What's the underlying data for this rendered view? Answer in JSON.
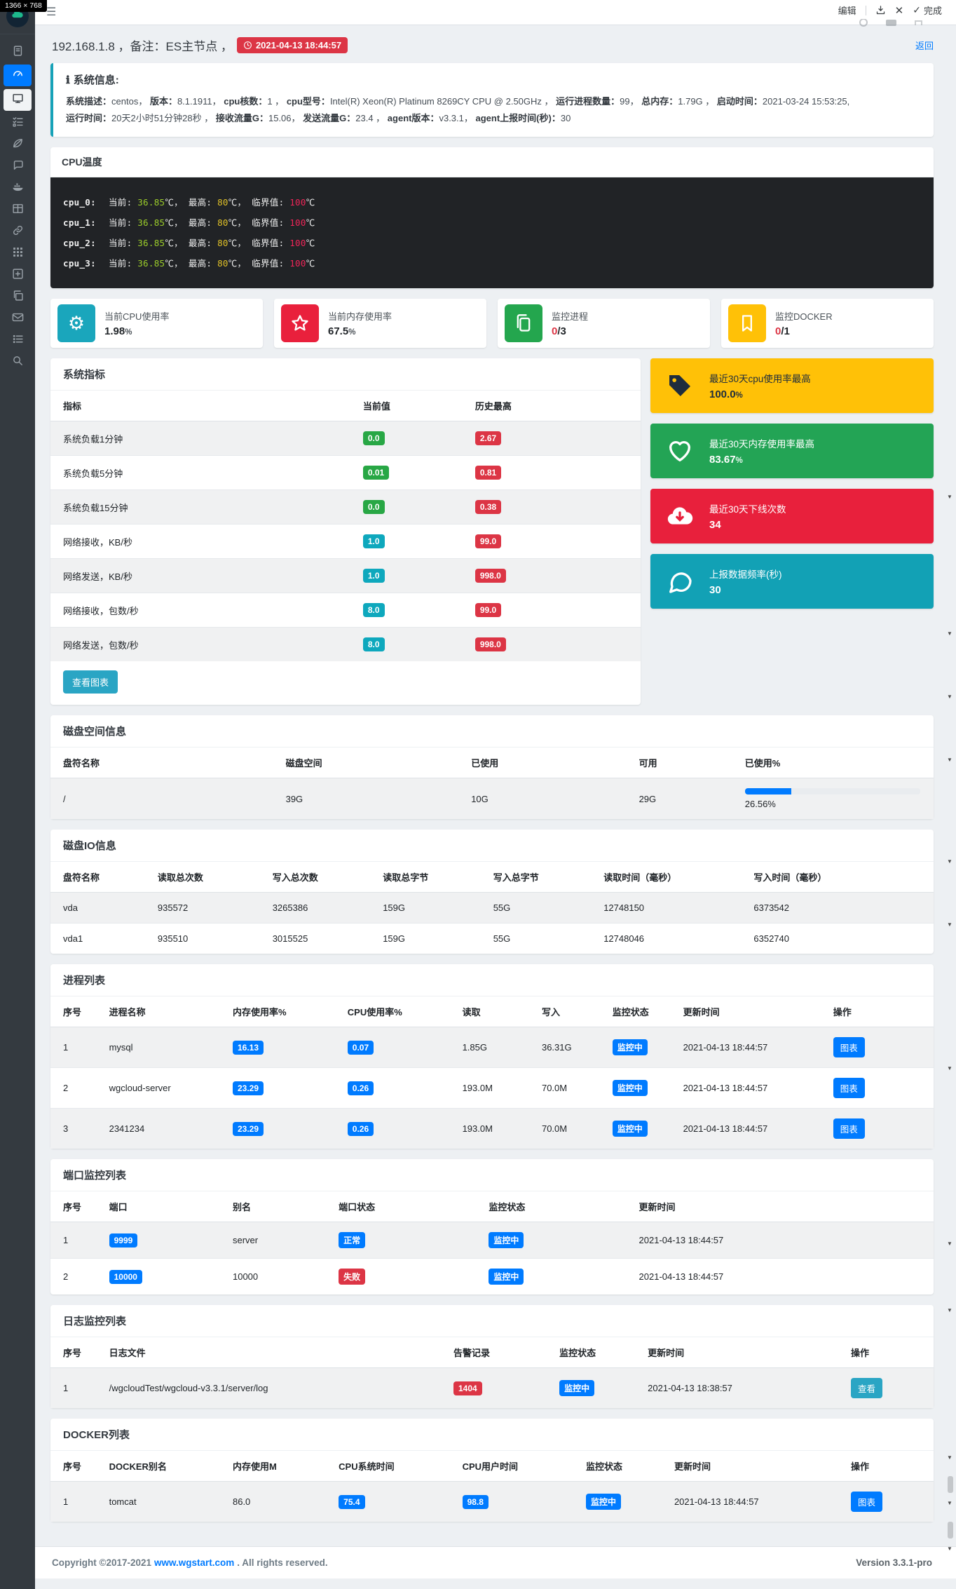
{
  "ui": {
    "resolution_badge": "1366 × 768",
    "toolbar": {
      "edit": "编辑",
      "done": "完成"
    },
    "back_link": "返回",
    "colors": {
      "primary": "#007bff",
      "success": "#28a745",
      "info": "#17a2b8",
      "danger": "#dc3545",
      "warning": "#ffc107"
    },
    "sidebar_icons": [
      "cloud-logo-icon",
      "journal-icon",
      "gauge-icon",
      "monitor-icon",
      "tasks-icon",
      "leaf-icon",
      "comment-icon",
      "docker-icon",
      "table-icon",
      "link-icon",
      "apps-grid-icon",
      "plus-square-icon",
      "copy-icon",
      "envelope-icon",
      "list-icon",
      "search-icon"
    ]
  },
  "header": {
    "title": "192.168.1.8 ，备注：ES主节点 ，",
    "timestamp": "2021-04-13 18:44:57"
  },
  "system_info": {
    "title": "系统信息:",
    "fields1": [
      {
        "k": "系统描述：",
        "v": "centos， "
      },
      {
        "k": "版本：",
        "v": "8.1.1911， "
      },
      {
        "k": "cpu核数：",
        "v": "1 ， "
      },
      {
        "k": "cpu型号：",
        "v": "Intel(R) Xeon(R) Platinum 8269CY CPU @ 2.50GHz ， "
      },
      {
        "k": "运行进程数量：",
        "v": "99， "
      },
      {
        "k": "总内存：",
        "v": "1.79G ， "
      },
      {
        "k": "启动时间：",
        "v": "2021-03-24 15:53:25, "
      }
    ],
    "fields2": [
      {
        "k": "运行时间：",
        "v": "20天2小时51分钟28秒 ， "
      },
      {
        "k": "接收流量G：",
        "v": "15.06， "
      },
      {
        "k": "发送流量G：",
        "v": "23.4 ， "
      },
      {
        "k": "agent版本：",
        "v": "v3.3.1， "
      },
      {
        "k": "agent上报时间(秒)：",
        "v": "30"
      }
    ]
  },
  "cpu_temp": {
    "title": "CPU温度",
    "rows": [
      {
        "name": "cpu_0:",
        "cur_label": "当前: ",
        "cur": "36.85",
        "sep1": "℃， ",
        "max_label": "最高: ",
        "max": "80",
        "sep2": "℃， ",
        "crit_label": "临界值: ",
        "crit": "100",
        "sep3": "℃"
      },
      {
        "name": "cpu_1:",
        "cur_label": "当前: ",
        "cur": "36.85",
        "sep1": "℃， ",
        "max_label": "最高: ",
        "max": "80",
        "sep2": "℃， ",
        "crit_label": "临界值: ",
        "crit": "100",
        "sep3": "℃"
      },
      {
        "name": "cpu_2:",
        "cur_label": "当前: ",
        "cur": "36.85",
        "sep1": "℃， ",
        "max_label": "最高: ",
        "max": "80",
        "sep2": "℃， ",
        "crit_label": "临界值: ",
        "crit": "100",
        "sep3": "℃"
      },
      {
        "name": "cpu_3:",
        "cur_label": "当前: ",
        "cur": "36.85",
        "sep1": "℃， ",
        "max_label": "最高: ",
        "max": "80",
        "sep2": "℃， ",
        "crit_label": "临界值: ",
        "crit": "100",
        "sep3": "℃"
      }
    ]
  },
  "stat_cards": [
    {
      "icon": "gear-icon",
      "color": "#1aa6bc",
      "label": "当前CPU使用率",
      "value": "1.98",
      "suffix": "%"
    },
    {
      "icon": "star-icon",
      "color": "#e9203c",
      "label": "当前内存使用率",
      "value": "67.5",
      "suffix": "%"
    },
    {
      "icon": "pages-icon",
      "color": "#24a64e",
      "label": "监控进程",
      "value": "0",
      "suffix": "/3"
    },
    {
      "icon": "bookmark-icon",
      "color": "#ffc107",
      "label": "监控DOCKER",
      "value": "0",
      "suffix": "/1"
    }
  ],
  "metrics": {
    "title": "系统指标",
    "columns": [
      "指标",
      "当前值",
      "历史最高"
    ],
    "rows": [
      {
        "name": "系统负载1分钟",
        "cur": "0.0",
        "max": "2.67"
      },
      {
        "name": "系统负载5分钟",
        "cur": "0.01",
        "max": "0.81"
      },
      {
        "name": "系统负载15分钟",
        "cur": "0.0",
        "max": "0.38"
      },
      {
        "name": "网络接收，KB/秒",
        "cur": "1.0",
        "max": "99.0"
      },
      {
        "name": "网络发送，KB/秒",
        "cur": "1.0",
        "max": "998.0"
      },
      {
        "name": "网络接收，包数/秒",
        "cur": "8.0",
        "max": "99.0"
      },
      {
        "name": "网络发送，包数/秒",
        "cur": "8.0",
        "max": "998.0"
      }
    ],
    "button": "查看图表"
  },
  "summary_cards": [
    {
      "icon": "tag-icon",
      "label": "最近30天cpu使用率最高",
      "value": "100.0",
      "suffix": "%"
    },
    {
      "icon": "heart-icon",
      "label": "最近30天内存使用率最高",
      "value": "83.67",
      "suffix": "%"
    },
    {
      "icon": "cloud-download-icon",
      "label": "最近30天下线次数",
      "value": "34",
      "suffix": ""
    },
    {
      "icon": "chat-icon",
      "label": "上报数据频率(秒)",
      "value": "30",
      "suffix": ""
    }
  ],
  "disk_space": {
    "title": "磁盘空间信息",
    "columns": [
      "盘符名称",
      "磁盘空间",
      "已使用",
      "可用",
      "已使用%"
    ],
    "rows": [
      {
        "name": "/",
        "total": "39G",
        "used": "10G",
        "free": "29G",
        "pct_label": "26.56%",
        "pct": 26.56
      }
    ]
  },
  "disk_io": {
    "title": "磁盘IO信息",
    "columns": [
      "盘符名称",
      "读取总次数",
      "写入总次数",
      "读取总字节",
      "写入总字节",
      "读取时间（毫秒）",
      "写入时间（毫秒）"
    ],
    "rows": [
      [
        "vda",
        "935572",
        "3265386",
        "159G",
        "55G",
        "12748150",
        "6373542"
      ],
      [
        "vda1",
        "935510",
        "3015525",
        "159G",
        "55G",
        "12748046",
        "6352740"
      ]
    ]
  },
  "process_list": {
    "title": "进程列表",
    "columns": [
      "序号",
      "进程名称",
      "内存使用率%",
      "CPU使用率%",
      "读取",
      "写入",
      "监控状态",
      "更新时间",
      "操作"
    ],
    "rows": [
      {
        "no": "1",
        "name": "mysql",
        "mem": "16.13",
        "cpu": "0.07",
        "read": "1.85G",
        "write": "36.31G",
        "status": "监控中",
        "time": "2021-04-13 18:44:57",
        "action": "图表"
      },
      {
        "no": "2",
        "name": "wgcloud-server",
        "mem": "23.29",
        "cpu": "0.26",
        "read": "193.0M",
        "write": "70.0M",
        "status": "监控中",
        "time": "2021-04-13 18:44:57",
        "action": "图表"
      },
      {
        "no": "3",
        "name": "2341234",
        "mem": "23.29",
        "cpu": "0.26",
        "read": "193.0M",
        "write": "70.0M",
        "status": "监控中",
        "time": "2021-04-13 18:44:57",
        "action": "图表"
      }
    ]
  },
  "port_list": {
    "title": "端口监控列表",
    "columns": [
      "序号",
      "端口",
      "别名",
      "端口状态",
      "监控状态",
      "更新时间"
    ],
    "rows": [
      {
        "no": "1",
        "port": "9999",
        "alias": "server",
        "state": "正常",
        "status": "监控中",
        "time": "2021-04-13 18:44:57"
      },
      {
        "no": "2",
        "port": "10000",
        "alias": "10000",
        "state": "失败",
        "status": "监控中",
        "time": "2021-04-13 18:44:57"
      }
    ]
  },
  "log_list": {
    "title": "日志监控列表",
    "columns": [
      "序号",
      "日志文件",
      "告警记录",
      "监控状态",
      "更新时间",
      "操作"
    ],
    "rows": [
      {
        "no": "1",
        "file": "/wgcloudTest/wgcloud-v3.3.1/server/log",
        "alerts": "1404",
        "status": "监控中",
        "time": "2021-04-13 18:38:57",
        "action": "查看"
      }
    ]
  },
  "docker_list": {
    "title": "DOCKER列表",
    "columns": [
      "序号",
      "DOCKER别名",
      "内存使用M",
      "CPU系统时间",
      "CPU用户时间",
      "监控状态",
      "更新时间",
      "操作"
    ],
    "rows": [
      {
        "no": "1",
        "name": "tomcat",
        "mem": "86.0",
        "cpu_sys": "75.4",
        "cpu_user": "98.8",
        "status": "监控中",
        "time": "2021-04-13 18:44:57",
        "action": "图表"
      }
    ]
  },
  "footer": {
    "copyright_prefix": "Copyright ©2017-2021",
    "link": "www.wgstart.com",
    "copyright_suffix": ". All rights reserved.",
    "version": "Version 3.3.1-pro"
  }
}
